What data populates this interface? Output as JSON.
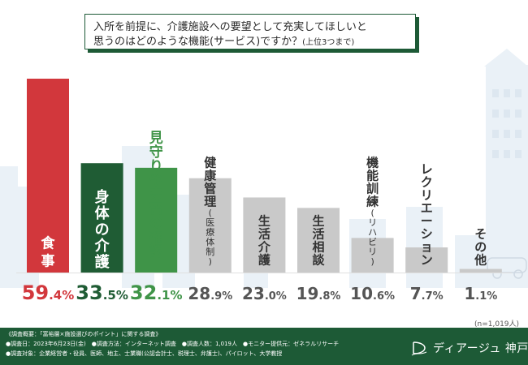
{
  "title": {
    "line1": "入所を前提に、介護施設への要望として充実してほしいと",
    "line2_main": "思うのはどのような機能(サービス)ですか？",
    "line2_note": "(上位3つまで)"
  },
  "sample_note": "(n=1,019人)",
  "footer": {
    "line1": "《調査概要：「富裕層×施設選びのポイント」に関する調査》",
    "line2": "●調査日：2023年6月23日(金)　●調査方法：インターネット調査　●調査人数：1,019人　●モニター提供元：ゼネラルリサーチ",
    "line3": "●調査対象：企業経営者・役員、医師、地主、士業職(公認会計士、税理士、弁護士)、パイロット、大学教授",
    "brand": "ディアージュ 神戸"
  },
  "chart_data": {
    "type": "bar",
    "title": "入所を前提に、介護施設への要望として充実してほしいと思うのはどのような機能(サービス)ですか？(上位3つまで)",
    "categories": [
      "食事",
      "身体の介護",
      "見守りや安否の確認",
      "健康管理(医療体制)",
      "生活介護",
      "生活相談",
      "機能訓練(リハビリ)",
      "レクリエーション",
      "その他"
    ],
    "values": [
      59.4,
      33.5,
      32.1,
      28.9,
      23.0,
      19.8,
      10.6,
      7.7,
      1.1
    ],
    "value_labels": [
      {
        "int": "59",
        "dec": ".4",
        "pct": "%"
      },
      {
        "int": "33",
        "dec": ".5",
        "pct": "%"
      },
      {
        "int": "32",
        "dec": ".1",
        "pct": "%"
      },
      {
        "int": "28",
        "dec": ".9",
        "pct": "%"
      },
      {
        "int": "23",
        "dec": ".0",
        "pct": "%"
      },
      {
        "int": "19",
        "dec": ".8",
        "pct": "%"
      },
      {
        "int": "10",
        "dec": ".6",
        "pct": "%"
      },
      {
        "int": "7",
        "dec": ".7",
        "pct": "%"
      },
      {
        "int": "1",
        "dec": ".1",
        "pct": "%"
      }
    ],
    "label_parts": [
      {
        "main": "食事",
        "sub": ""
      },
      {
        "main": "身体の介護",
        "sub": ""
      },
      {
        "main": "見守りや安否の確認",
        "sub": ""
      },
      {
        "main": "健康管理",
        "sub": "(医療体制)"
      },
      {
        "main": "生活介護",
        "sub": ""
      },
      {
        "main": "生活相談",
        "sub": ""
      },
      {
        "main": "機能訓練",
        "sub": "(リハビリ)"
      },
      {
        "main": "レクリエーション",
        "sub": ""
      },
      {
        "main": "その他",
        "sub": ""
      }
    ],
    "ylim": [
      0,
      60
    ],
    "grid": false,
    "legend": "none",
    "colors": {
      "top1": "#d2373c",
      "top2": "#1f5c34",
      "top3": "#3f9448",
      "others": "#c9c9c9",
      "label_on_color": "#ffffff",
      "label_on_gray": "#333333",
      "top3_label": "#3f9448",
      "value_gray": "#555555"
    }
  },
  "colors": {
    "brand_green": "#1d5a36",
    "city_bg": "#eaf1f7"
  }
}
